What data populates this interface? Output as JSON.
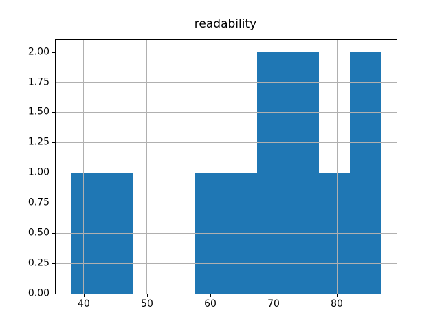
{
  "chart_data": {
    "type": "bar",
    "subtype": "histogram",
    "title": "readability",
    "xlabel": "",
    "ylabel": "",
    "bin_edges": [
      38.0,
      42.9,
      47.8,
      52.7,
      57.6,
      62.5,
      67.4,
      72.3,
      77.2,
      82.1,
      87.0
    ],
    "counts": [
      1,
      1,
      0,
      0,
      1,
      1,
      2,
      2,
      1,
      2
    ],
    "xlim": [
      35.55,
      89.45
    ],
    "ylim": [
      0,
      2.1
    ],
    "x_ticks": [
      40,
      50,
      60,
      70,
      80
    ],
    "x_tick_labels": [
      "40",
      "50",
      "60",
      "70",
      "80"
    ],
    "y_ticks": [
      0.0,
      0.25,
      0.5,
      0.75,
      1.0,
      1.25,
      1.5,
      1.75,
      2.0
    ],
    "y_tick_labels": [
      "0.00",
      "0.25",
      "0.50",
      "0.75",
      "1.00",
      "1.25",
      "1.50",
      "1.75",
      "2.00"
    ],
    "grid": true,
    "legend": false
  },
  "colors": {
    "bar": "#1f77b4",
    "grid": "#b0b0b0",
    "spine": "#000000",
    "text": "#000000",
    "background": "#ffffff"
  }
}
